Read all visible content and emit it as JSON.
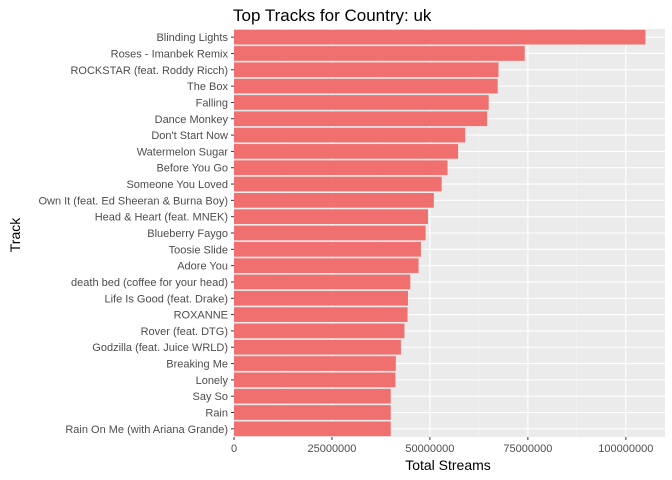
{
  "chart_data": {
    "type": "bar",
    "orientation": "horizontal",
    "title": "Top Tracks for Country: uk",
    "xlabel": "Total Streams",
    "ylabel": "Track",
    "xlim": [
      0,
      110000000
    ],
    "x_ticks": [
      0,
      25000000,
      50000000,
      75000000,
      100000000
    ],
    "x_tick_labels": [
      "0",
      "25000000",
      "50000000",
      "75000000",
      "100000000"
    ],
    "grid": true,
    "legend": "none",
    "bar_color": "#f07070",
    "panel_color": "#ebebeb",
    "categories": [
      "Blinding Lights",
      "Roses - Imanbek Remix",
      "ROCKSTAR (feat. Roddy Ricch)",
      "The Box",
      "Falling",
      "Dance Monkey",
      "Don't Start Now",
      "Watermelon Sugar",
      "Before You Go",
      "Someone You Loved",
      "Own It (feat. Ed Sheeran & Burna Boy)",
      "Head & Heart (feat. MNEK)",
      "Blueberry Faygo",
      "Toosie Slide",
      "Adore You",
      "death bed (coffee for your head)",
      "Life Is Good (feat. Drake)",
      "ROXANNE",
      "Rover (feat. DTG)",
      "Godzilla (feat. Juice WRLD)",
      "Breaking Me",
      "Lonely",
      "Say So",
      "Rain",
      "Rain On Me (with Ariana Grande)"
    ],
    "values": [
      105000000,
      74200000,
      67500000,
      67300000,
      65000000,
      64600000,
      59000000,
      57200000,
      54500000,
      53000000,
      51000000,
      49500000,
      48900000,
      47700000,
      47100000,
      45000000,
      44400000,
      44300000,
      43500000,
      42600000,
      41300000,
      41200000,
      40000000,
      40000000,
      40000000
    ]
  }
}
